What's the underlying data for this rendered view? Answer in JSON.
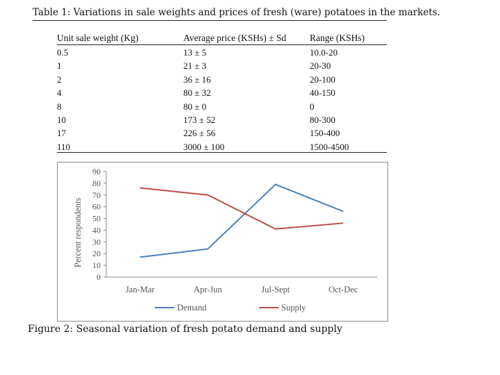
{
  "table": {
    "title": "Table 1: Variations in sale weights and prices of fresh (ware) potatoes in the markets.",
    "headers": [
      "Unit sale weight (Kg)",
      "Average price (KSHs) ± Sd",
      "Range (KSHs)"
    ],
    "rows": [
      [
        "0.5",
        "13 ± 5",
        "10.0-20"
      ],
      [
        "1",
        "21 ± 3",
        "20-30"
      ],
      [
        "2",
        "36 ± 16",
        "20-100"
      ],
      [
        "4",
        "80 ± 32",
        "40-150"
      ],
      [
        "8",
        "80 ± 0",
        "0"
      ],
      [
        "10",
        "173 ± 52",
        "80-300"
      ],
      [
        "17",
        "226 ± 56",
        "150-400"
      ],
      [
        "110",
        "3000 ± 100",
        "1500-4500"
      ]
    ]
  },
  "figure": {
    "caption": "Figure 2: Seasonal variation of fresh potato demand and supply"
  },
  "chart_data": {
    "type": "line",
    "categories": [
      "Jan-Mar",
      "Apr-Jun",
      "Jul-Sept",
      "Oct-Dec"
    ],
    "series": [
      {
        "name": "Demand",
        "values": [
          17,
          24,
          79,
          56
        ],
        "color": "#4a7ebb"
      },
      {
        "name": "Supply",
        "values": [
          76,
          70,
          41,
          46
        ],
        "color": "#be4b48"
      }
    ],
    "ylabel": "Percent respondents",
    "xlabel": "",
    "ylim": [
      0,
      90
    ],
    "yticks": [
      "0",
      "10",
      "20",
      "30",
      "40",
      "50",
      "60",
      "70",
      "80",
      "90"
    ],
    "grid": false,
    "legend": "bottom"
  }
}
